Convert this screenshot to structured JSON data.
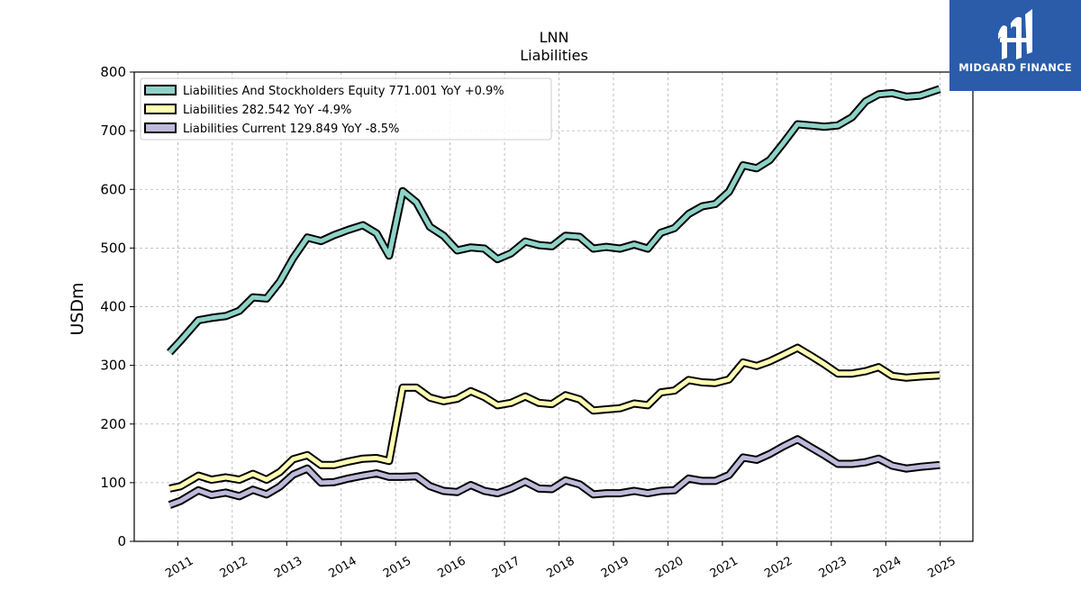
{
  "chart_data": {
    "type": "line",
    "title": "LNN",
    "subtitle": "Liabilities",
    "ylabel": "USDm",
    "xlabel": "",
    "ylim": [
      0,
      800
    ],
    "yticks": [
      0,
      100,
      200,
      300,
      400,
      500,
      600,
      700,
      800
    ],
    "xlim": [
      2010.2,
      2025.6
    ],
    "xticks": [
      "2011",
      "2012",
      "2013",
      "2014",
      "2015",
      "2016",
      "2017",
      "2018",
      "2019",
      "2020",
      "2021",
      "2022",
      "2023",
      "2024",
      "2025"
    ],
    "grid": true,
    "legend_position": "top-left",
    "x": [
      2010.85,
      2011.05,
      2011.38,
      2011.62,
      2011.88,
      2012.13,
      2012.38,
      2012.63,
      2012.87,
      2013.12,
      2013.38,
      2013.63,
      2013.87,
      2014.13,
      2014.4,
      2014.65,
      2014.88,
      2015.13,
      2015.38,
      2015.63,
      2015.88,
      2016.13,
      2016.38,
      2016.63,
      2016.87,
      2017.12,
      2017.38,
      2017.63,
      2017.87,
      2018.12,
      2018.38,
      2018.63,
      2018.87,
      2019.12,
      2019.38,
      2019.63,
      2019.87,
      2020.12,
      2020.38,
      2020.63,
      2020.87,
      2021.12,
      2021.38,
      2021.63,
      2021.87,
      2022.12,
      2022.38,
      2022.63,
      2022.87,
      2023.12,
      2023.38,
      2023.63,
      2023.87,
      2024.12,
      2024.38,
      2024.63,
      2024.99
    ],
    "series": [
      {
        "name": "Liabilities And Stockholders Equity",
        "legend": "Liabilities And Stockholders Equity  771.001 YoY +0.9%",
        "color": "#8dd3c7",
        "values": [
          322,
          342,
          377,
          381,
          384,
          393,
          416,
          414,
          442,
          483,
          518,
          512,
          522,
          531,
          539,
          525,
          487,
          597,
          578,
          536,
          521,
          496,
          501,
          499,
          481,
          491,
          511,
          505,
          503,
          521,
          519,
          499,
          502,
          499,
          506,
          499,
          526,
          534,
          558,
          571,
          575,
          596,
          641,
          636,
          650,
          679,
          711,
          709,
          707,
          709,
          723,
          750,
          762,
          764,
          758,
          760,
          771
        ]
      },
      {
        "name": "Liabilities",
        "legend": "Liabilities  282.542 YoY -4.9%",
        "color": "#ffffb3",
        "values": [
          90,
          94,
          112,
          105,
          109,
          105,
          115,
          105,
          118,
          140,
          147,
          130,
          130,
          136,
          141,
          142,
          137,
          262,
          262,
          245,
          239,
          243,
          256,
          246,
          232,
          236,
          247,
          236,
          234,
          249,
          242,
          223,
          225,
          227,
          235,
          232,
          254,
          257,
          275,
          271,
          270,
          276,
          305,
          299,
          307,
          318,
          330,
          316,
          302,
          286,
          286,
          290,
          297,
          282,
          279,
          281,
          283
        ]
      },
      {
        "name": "Liabilities Current",
        "legend": "Liabilities Current  129.849 YoY -8.5%",
        "color": "#bebada",
        "values": [
          62,
          69,
          87,
          79,
          83,
          77,
          88,
          80,
          93,
          114,
          124,
          100,
          101,
          107,
          112,
          116,
          110,
          110,
          111,
          94,
          86,
          84,
          96,
          86,
          82,
          90,
          102,
          90,
          89,
          104,
          97,
          80,
          82,
          82,
          86,
          82,
          86,
          87,
          107,
          103,
          103,
          113,
          143,
          139,
          149,
          162,
          174,
          160,
          147,
          132,
          132,
          135,
          141,
          129,
          124,
          127,
          130
        ]
      }
    ]
  },
  "logo": {
    "text": "MIDGARD FINANCE",
    "bg_color": "#2a5caa"
  }
}
